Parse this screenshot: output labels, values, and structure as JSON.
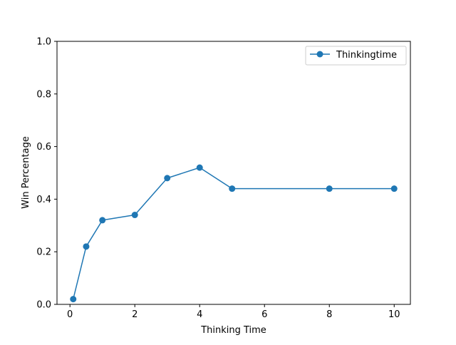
{
  "chart_data": {
    "type": "line",
    "title": "",
    "xlabel": "Thinking Time",
    "ylabel": "Win Percentage",
    "xlim": [
      -0.4,
      10.5
    ],
    "ylim": [
      0.0,
      1.0
    ],
    "xticks": [
      0,
      2,
      4,
      6,
      8,
      10
    ],
    "yticks": [
      0.0,
      0.2,
      0.4,
      0.6,
      0.8,
      1.0
    ],
    "xtick_labels": [
      "0",
      "2",
      "4",
      "6",
      "8",
      "10"
    ],
    "ytick_labels": [
      "0.0",
      "0.2",
      "0.4",
      "0.6",
      "0.8",
      "1.0"
    ],
    "grid": false,
    "legend_position": "top-right",
    "series": [
      {
        "name": "Thinkingtime",
        "color": "#1f77b4",
        "marker": "circle",
        "x": [
          0.1,
          0.5,
          1,
          2,
          3,
          4,
          5,
          8,
          10
        ],
        "y": [
          0.02,
          0.22,
          0.32,
          0.34,
          0.48,
          0.52,
          0.44,
          0.44,
          0.44
        ]
      }
    ]
  }
}
